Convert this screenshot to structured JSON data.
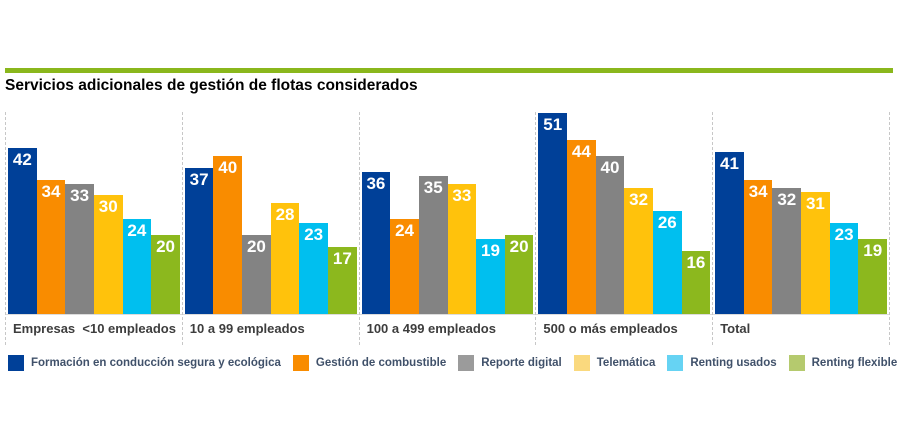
{
  "title": "Servicios adicionales de gestión de flotas considerados",
  "accent_color": "#8AB71C",
  "chart_data": {
    "type": "bar",
    "title": "Servicios adicionales de gestión de flotas considerados",
    "categories": [
      "Empresas  <10 empleados",
      "10 a 99 empleados",
      "100 a 499 empleados",
      "500 o más empleados",
      "Total"
    ],
    "series": [
      {
        "name": "Formación en conducción segura y ecológica",
        "color": "#004098",
        "legend_color": "#004098",
        "values": [
          42,
          37,
          36,
          51,
          41
        ]
      },
      {
        "name": "Gestión de combustible",
        "color": "#F98C00",
        "legend_color": "#F98C00",
        "values": [
          34,
          40,
          24,
          44,
          34
        ]
      },
      {
        "name": "Reporte digital",
        "color": "#838383",
        "legend_color": "#9B9B9B",
        "values": [
          33,
          20,
          35,
          40,
          32
        ]
      },
      {
        "name": "Telemática",
        "color": "#FFC20C",
        "legend_color": "#FAD97E",
        "values": [
          30,
          28,
          33,
          32,
          31
        ]
      },
      {
        "name": "Renting usados",
        "color": "#00BFEF",
        "legend_color": "#66D3F3",
        "values": [
          24,
          23,
          19,
          26,
          23
        ]
      },
      {
        "name": "Renting flexible",
        "color": "#8CB81E",
        "legend_color": "#B5CA6E",
        "values": [
          20,
          17,
          20,
          16,
          19
        ]
      }
    ],
    "ylim": [
      0,
      51
    ],
    "value_labels": "inside-top-white-bold",
    "grid": "dashed-vertical-group-separators",
    "legend_position": "bottom"
  }
}
